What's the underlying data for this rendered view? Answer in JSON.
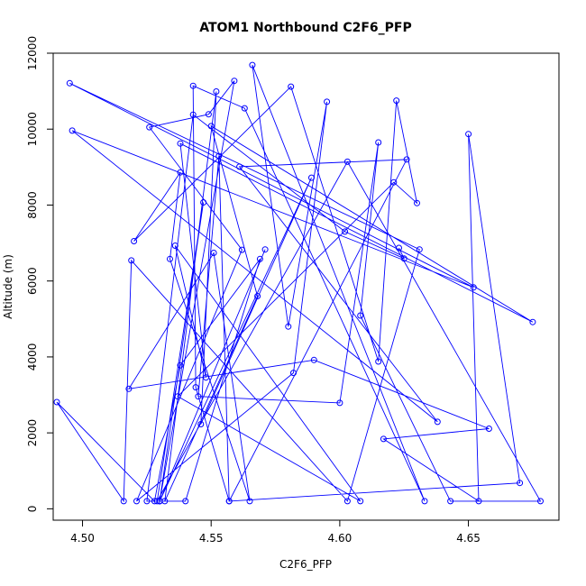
{
  "chart_data": {
    "type": "line",
    "title": "ATOM1 Northbound C2F6_PFP",
    "xlabel": "C2F6_PFP",
    "ylabel": "Altitude (m)",
    "xlim": [
      4.4886,
      4.6852
    ],
    "ylim": [
      -300,
      12000
    ],
    "x_ticks": [
      4.5,
      4.55,
      4.6,
      4.65
    ],
    "x_tick_labels": [
      "4.50",
      "4.55",
      "4.60",
      "4.65"
    ],
    "y_ticks": [
      0,
      2000,
      4000,
      6000,
      8000,
      10000,
      12000
    ],
    "y_tick_labels": [
      "0",
      "2000",
      "4000",
      "6000",
      "8000",
      "10000",
      "12000"
    ],
    "grid": false,
    "legend": "none",
    "marker": "open-circle",
    "series": [
      {
        "color": "#0000ff",
        "points": [
          [
            4.623,
            6870
          ],
          [
            4.625,
            6590
          ],
          [
            4.602,
            7300
          ],
          [
            4.543,
            10380
          ],
          [
            4.525,
            200
          ],
          [
            4.53,
            200
          ],
          [
            4.589,
            8720
          ],
          [
            4.546,
            2230
          ],
          [
            4.552,
            10990
          ],
          [
            4.532,
            200
          ],
          [
            4.568,
            5600
          ],
          [
            4.55,
            10080
          ],
          [
            4.675,
            4920
          ],
          [
            4.538,
            9620
          ],
          [
            4.548,
            3460
          ],
          [
            4.536,
            6930
          ],
          [
            4.608,
            200
          ],
          [
            4.537,
            2960
          ],
          [
            4.621,
            8600
          ],
          [
            4.63,
            8050
          ],
          [
            4.622,
            10750
          ],
          [
            4.615,
            3880
          ],
          [
            4.581,
            11120
          ],
          [
            4.52,
            7050
          ],
          [
            4.538,
            8860
          ],
          [
            4.534,
            6580
          ],
          [
            4.565,
            200
          ],
          [
            4.551,
            6740
          ],
          [
            4.518,
            3160
          ],
          [
            4.59,
            3920
          ],
          [
            4.658,
            2110
          ],
          [
            4.617,
            1840
          ],
          [
            4.654,
            200
          ],
          [
            4.65,
            9870
          ],
          [
            4.67,
            680
          ],
          [
            4.557,
            200
          ],
          [
            4.626,
            9200
          ],
          [
            4.561,
            9010
          ],
          [
            4.638,
            2290
          ],
          [
            4.496,
            9960
          ],
          [
            4.652,
            5830
          ],
          [
            4.495,
            11210
          ],
          [
            4.631,
            6830
          ],
          [
            4.603,
            200
          ],
          [
            4.519,
            6540
          ],
          [
            4.516,
            200
          ],
          [
            4.49,
            2810
          ],
          [
            4.528,
            200
          ],
          [
            4.538,
            3780
          ],
          [
            4.569,
            6580
          ],
          [
            4.54,
            200
          ],
          [
            4.53,
            200
          ],
          [
            4.559,
            11270
          ],
          [
            4.549,
            10390
          ],
          [
            4.526,
            10050
          ],
          [
            4.562,
            6820
          ],
          [
            4.521,
            200
          ],
          [
            4.582,
            3580
          ],
          [
            4.595,
            10720
          ],
          [
            4.58,
            4800
          ],
          [
            4.566,
            11690
          ],
          [
            4.633,
            200
          ],
          [
            4.563,
            10550
          ],
          [
            4.543,
            11140
          ],
          [
            4.544,
            3200
          ],
          [
            4.557,
            200
          ],
          [
            4.553,
            9290
          ],
          [
            4.545,
            2960
          ],
          [
            4.6,
            2790
          ],
          [
            4.615,
            9650
          ],
          [
            4.608,
            5090
          ],
          [
            4.643,
            200
          ],
          [
            4.678,
            200
          ],
          [
            4.603,
            9140
          ],
          [
            4.529,
            200
          ],
          [
            4.547,
            8070
          ],
          [
            4.53,
            200
          ],
          [
            4.571,
            6830
          ]
        ]
      }
    ]
  }
}
